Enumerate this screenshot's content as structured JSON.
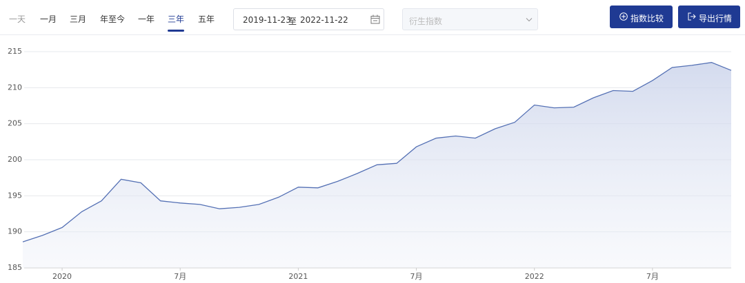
{
  "toolbar": {
    "tabs": [
      "一天",
      "一月",
      "三月",
      "年至今",
      "一年",
      "三年",
      "五年"
    ],
    "active_tab": 5,
    "date_range": {
      "start": "2019-11-23",
      "separator": "至",
      "end": "2022-11-22"
    },
    "select_placeholder": "衍生指数",
    "buttons": [
      "指数比较",
      "导出行情"
    ]
  },
  "chart_data": {
    "type": "area",
    "color": "#5470b4",
    "x": [
      "2019-11",
      "2019-12",
      "2020-01",
      "2020-02",
      "2020-03",
      "2020-04",
      "2020-05",
      "2020-06",
      "2020-07",
      "2020-08",
      "2020-09",
      "2020-10",
      "2020-11",
      "2020-12",
      "2021-01",
      "2021-02",
      "2021-03",
      "2021-04",
      "2021-05",
      "2021-06",
      "2021-07",
      "2021-08",
      "2021-09",
      "2021-10",
      "2021-11",
      "2021-12",
      "2022-01",
      "2022-02",
      "2022-03",
      "2022-04",
      "2022-05",
      "2022-06",
      "2022-07",
      "2022-08",
      "2022-09",
      "2022-10",
      "2022-11"
    ],
    "values": [
      188.6,
      189.5,
      190.6,
      192.8,
      194.3,
      197.3,
      196.8,
      194.3,
      194.0,
      193.8,
      193.2,
      193.4,
      193.8,
      194.8,
      196.2,
      196.1,
      197.0,
      198.1,
      199.3,
      199.5,
      201.8,
      203.0,
      203.3,
      203.0,
      204.3,
      205.2,
      207.6,
      207.2,
      207.3,
      208.6,
      209.6,
      209.5,
      211.0,
      212.8,
      213.1,
      213.5,
      212.4
    ],
    "xlim": [
      "2019-11",
      "2022-11"
    ],
    "xticks": [
      {
        "value": "2020-01",
        "label": "2020"
      },
      {
        "value": "2020-07",
        "label": "7月"
      },
      {
        "value": "2021-01",
        "label": "2021"
      },
      {
        "value": "2021-07",
        "label": "7月"
      },
      {
        "value": "2022-01",
        "label": "2022"
      },
      {
        "value": "2022-07",
        "label": "7月"
      }
    ],
    "ylim": [
      185,
      215
    ],
    "yticks": [
      185,
      190,
      195,
      200,
      205,
      210,
      215
    ],
    "grid": true
  }
}
